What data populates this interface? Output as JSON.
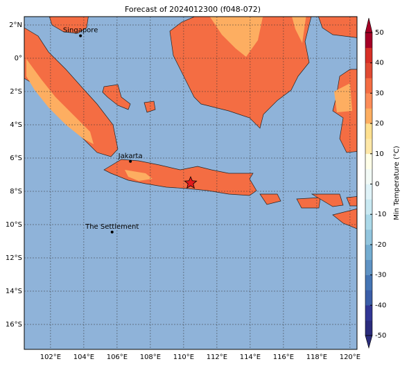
{
  "map": {
    "title": "Forecast of 2024012300 (f048-072)",
    "xlim": [
      100.42,
      120.42
    ],
    "ylim": [
      -17.5,
      2.5
    ],
    "xticks": [
      {
        "value": 102,
        "label": "102°E"
      },
      {
        "value": 104,
        "label": "104°E"
      },
      {
        "value": 106,
        "label": "106°E"
      },
      {
        "value": 108,
        "label": "108°E"
      },
      {
        "value": 110,
        "label": "110°E"
      },
      {
        "value": 112,
        "label": "112°E"
      },
      {
        "value": 114,
        "label": "114°E"
      },
      {
        "value": 116,
        "label": "116°E"
      },
      {
        "value": 118,
        "label": "118°E"
      },
      {
        "value": 120,
        "label": "120°E"
      }
    ],
    "yticks": [
      {
        "value": 2,
        "label": "2°N"
      },
      {
        "value": 0,
        "label": "0°"
      },
      {
        "value": -2,
        "label": "2°S"
      },
      {
        "value": -4,
        "label": "4°S"
      },
      {
        "value": -6,
        "label": "6°S"
      },
      {
        "value": -8,
        "label": "8°S"
      },
      {
        "value": -10,
        "label": "10°S"
      },
      {
        "value": -12,
        "label": "12°S"
      },
      {
        "value": -14,
        "label": "14°S"
      },
      {
        "value": -16,
        "label": "16°S"
      }
    ],
    "grid": true,
    "places": [
      {
        "name": "Singapore",
        "lon": 103.8,
        "lat": 1.35
      },
      {
        "name": "Jakarta",
        "lon": 106.8,
        "lat": -6.2
      },
      {
        "name": "The Settlement",
        "lon": 105.7,
        "lat": -10.45
      }
    ],
    "marker": {
      "lon": 110.42,
      "lat": -7.5,
      "color": "#e31a1c"
    },
    "colorbar": {
      "label": "Min Temperature (°C)",
      "lim": [
        -50,
        50
      ],
      "ticks": [
        50,
        40,
        30,
        20,
        10,
        0,
        -10,
        -20,
        -30,
        -40,
        -50
      ],
      "colors": [
        "#2b2c7c",
        "#313695",
        "#3b5ea8",
        "#4575b4",
        "#5f93c4",
        "#74add1",
        "#92c5de",
        "#abd9e9",
        "#c9e9f2",
        "#e0f3f8",
        "#f2faf6",
        "#ffffe8",
        "#fee8a8",
        "#fee090",
        "#fdae61",
        "#fc8d59",
        "#f46d43",
        "#e04a33",
        "#d73027",
        "#a50026"
      ]
    }
  }
}
